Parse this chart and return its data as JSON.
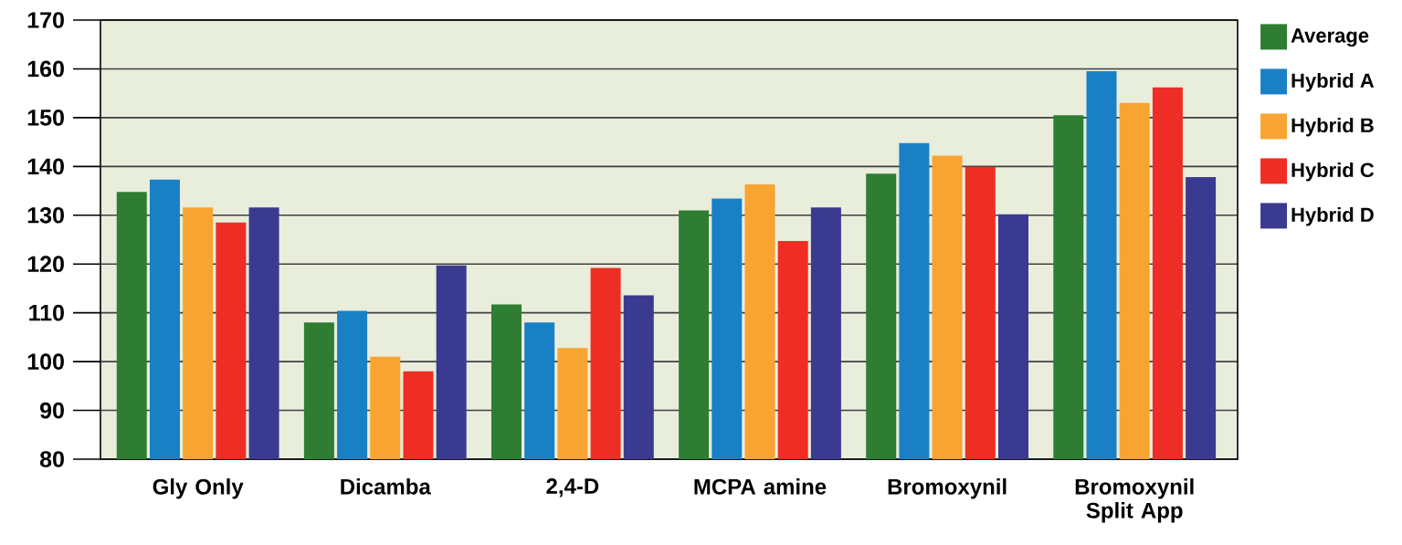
{
  "chart_data": {
    "type": "bar",
    "categories": [
      "Gly Only",
      "Dicamba",
      "2,4-D",
      "MCPA amine",
      "Bromoxynil",
      "Bromoxynil Split App"
    ],
    "series": [
      {
        "name": "Average",
        "color": "#2e7d32",
        "values": [
          134.8,
          108.0,
          111.7,
          131.0,
          138.5,
          150.5
        ]
      },
      {
        "name": "Hybrid A",
        "color": "#1a80c6",
        "values": [
          137.3,
          110.4,
          108.0,
          133.4,
          144.8,
          159.5
        ]
      },
      {
        "name": "Hybrid B",
        "color": "#f8a431",
        "values": [
          131.6,
          101.0,
          102.8,
          136.3,
          142.2,
          153.0
        ]
      },
      {
        "name": "Hybrid C",
        "color": "#ee2e24",
        "values": [
          128.5,
          98.0,
          119.2,
          124.7,
          139.9,
          156.2
        ]
      },
      {
        "name": "Hybrid D",
        "color": "#3a3a90",
        "values": [
          131.6,
          119.7,
          113.6,
          131.6,
          130.2,
          137.8
        ]
      }
    ],
    "ylim": [
      80,
      170
    ],
    "yticks": [
      80,
      90,
      100,
      110,
      120,
      130,
      140,
      150,
      160,
      170
    ],
    "grid": "y",
    "legend": "right"
  }
}
